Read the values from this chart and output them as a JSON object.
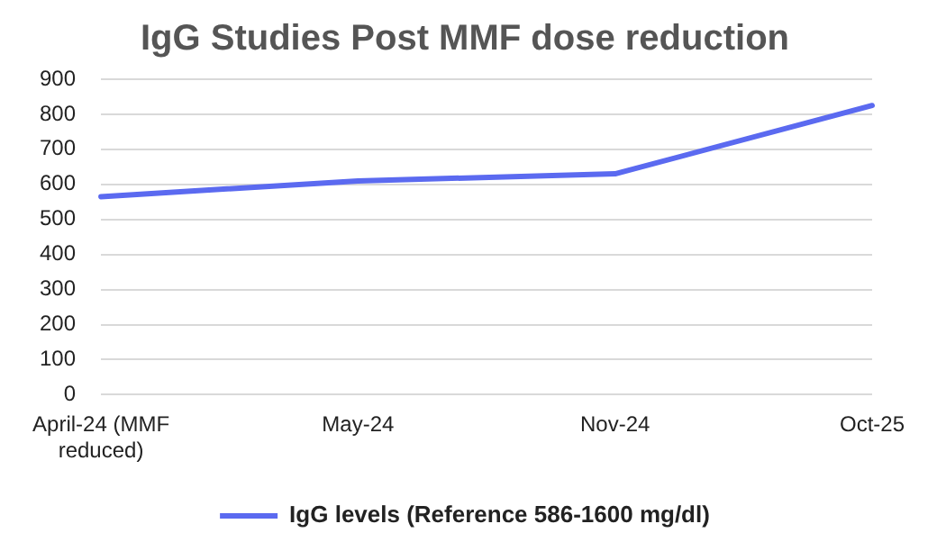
{
  "chart_data": {
    "type": "line",
    "title": "IgG Studies Post MMF dose reduction",
    "categories": [
      "April-24 (MMF reduced)",
      "May-24",
      "Nov-24",
      "Oct-25"
    ],
    "series": [
      {
        "name": "IgG levels (Reference 586-1600 mg/dl)",
        "color": "#5b6af0",
        "values": [
          565,
          610,
          630,
          825
        ]
      }
    ],
    "ylim": [
      0,
      900
    ],
    "yticks": [
      0,
      100,
      200,
      300,
      400,
      500,
      600,
      700,
      800,
      900
    ],
    "grid": "y",
    "legend": "bottom",
    "marker": "none",
    "line_style": "solid"
  }
}
